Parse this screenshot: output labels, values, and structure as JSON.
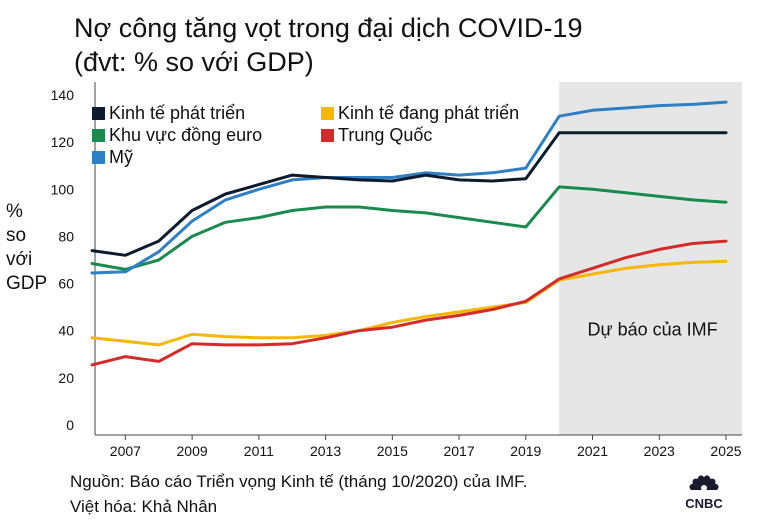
{
  "header": {
    "title": "Nợ công tăng vọt trong đại dịch COVID-19",
    "subtitle": "(đvt: % so với GDP)"
  },
  "chart_data": {
    "type": "line",
    "ylabel_lines": [
      "%",
      "so",
      "với",
      "GDP"
    ],
    "ylim": [
      0,
      140
    ],
    "yticks": [
      0,
      20,
      40,
      60,
      80,
      100,
      120,
      140
    ],
    "xlim": [
      2006,
      2025
    ],
    "xticks": [
      2007,
      2009,
      2011,
      2013,
      2015,
      2017,
      2019,
      2021,
      2023,
      2025
    ],
    "grid": false,
    "legend_placement": "top-left",
    "forecast": {
      "from": 2020,
      "to": 2025,
      "label": "Dự báo của IMF",
      "color": "#e6e6e6"
    },
    "x": [
      2006,
      2007,
      2008,
      2009,
      2010,
      2011,
      2012,
      2013,
      2014,
      2015,
      2016,
      2017,
      2018,
      2019,
      2020,
      2021,
      2022,
      2023,
      2024,
      2025
    ],
    "series": [
      {
        "name": "Kinh tế phát triển",
        "color": "#0d1b2e",
        "values": [
          74,
          72,
          78,
          91,
          98,
          102,
          106,
          105,
          104,
          103.5,
          106,
          104,
          103.5,
          104.5,
          124,
          124,
          124,
          124,
          124,
          124
        ]
      },
      {
        "name": "Khu vực đồng euro",
        "color": "#1a8a4e",
        "values": [
          68.5,
          66,
          70,
          80,
          86,
          88,
          91,
          92.5,
          92.5,
          91,
          90,
          88,
          86,
          84,
          101,
          100,
          98.5,
          97,
          95.5,
          94.5
        ]
      },
      {
        "name": "Mỹ",
        "color": "#2f7fc4",
        "values": [
          64.5,
          65,
          73.5,
          86.5,
          95.5,
          100,
          104,
          105,
          105,
          105,
          107,
          106,
          107,
          109,
          131,
          133.5,
          134.5,
          135.5,
          136,
          137
        ]
      },
      {
        "name": "Kinh tế đang phát triển",
        "color": "#f5b800",
        "values": [
          37,
          35.5,
          34,
          38.5,
          37.5,
          37,
          37,
          38,
          40,
          43.5,
          46,
          48,
          50,
          52,
          61.5,
          64,
          66.5,
          68,
          69,
          69.5
        ]
      },
      {
        "name": "Trung Quốc",
        "color": "#d42a2a",
        "values": [
          25.5,
          29,
          27,
          34.5,
          34,
          34,
          34.5,
          37,
          40,
          41.5,
          44.5,
          46.5,
          49,
          52.5,
          62,
          66.5,
          71,
          74.5,
          77,
          78
        ]
      }
    ]
  },
  "footer": {
    "source": "Nguồn: Báo cáo Triển vọng Kinh tế (tháng 10/2020) của IMF.",
    "credit": "Việt hóa: Khả Nhân",
    "logo_text": "CNBC"
  }
}
